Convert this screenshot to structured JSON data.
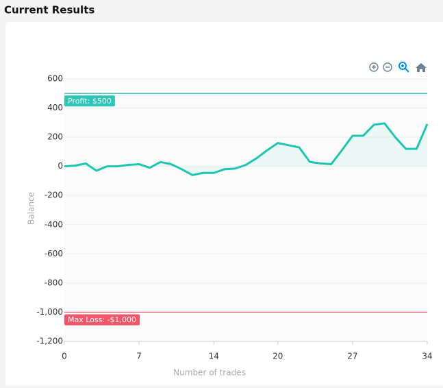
{
  "chart_data": {
    "type": "line",
    "title": "Current Results",
    "x": [
      0,
      1,
      2,
      3,
      4,
      5,
      6,
      7,
      8,
      9,
      10,
      11,
      12,
      13,
      14,
      15,
      16,
      17,
      18,
      19,
      20,
      21,
      22,
      23,
      24,
      25,
      26,
      27,
      28,
      29,
      30,
      31,
      32,
      33,
      34
    ],
    "series": [
      {
        "name": "Balance",
        "color": "#1cc6b0",
        "values": [
          0,
          5,
          20,
          -30,
          0,
          0,
          10,
          15,
          -10,
          30,
          15,
          -20,
          -60,
          -45,
          -45,
          -20,
          -15,
          10,
          55,
          110,
          160,
          145,
          130,
          30,
          20,
          15,
          110,
          210,
          210,
          285,
          295,
          200,
          120,
          120,
          290
        ]
      }
    ],
    "xlabel": "Number of trades",
    "ylabel": "Balance",
    "xlim": [
      0,
      34
    ],
    "xticks": [
      0,
      7,
      14,
      20,
      27,
      34
    ],
    "ylim": [
      -1200,
      600
    ],
    "yticks": [
      {
        "value": -1200,
        "label": "-1,200"
      },
      {
        "value": -1000,
        "label": "-1,000"
      },
      -800,
      -600,
      -400,
      -200,
      0,
      200,
      400,
      600
    ],
    "grid": true,
    "annotations": [
      {
        "text": "Profit: $500",
        "value": 500,
        "color": "#2ec4b6"
      },
      {
        "text": "Max Loss: -$1,000",
        "value": -1000,
        "color": "#f0566a"
      }
    ]
  }
}
